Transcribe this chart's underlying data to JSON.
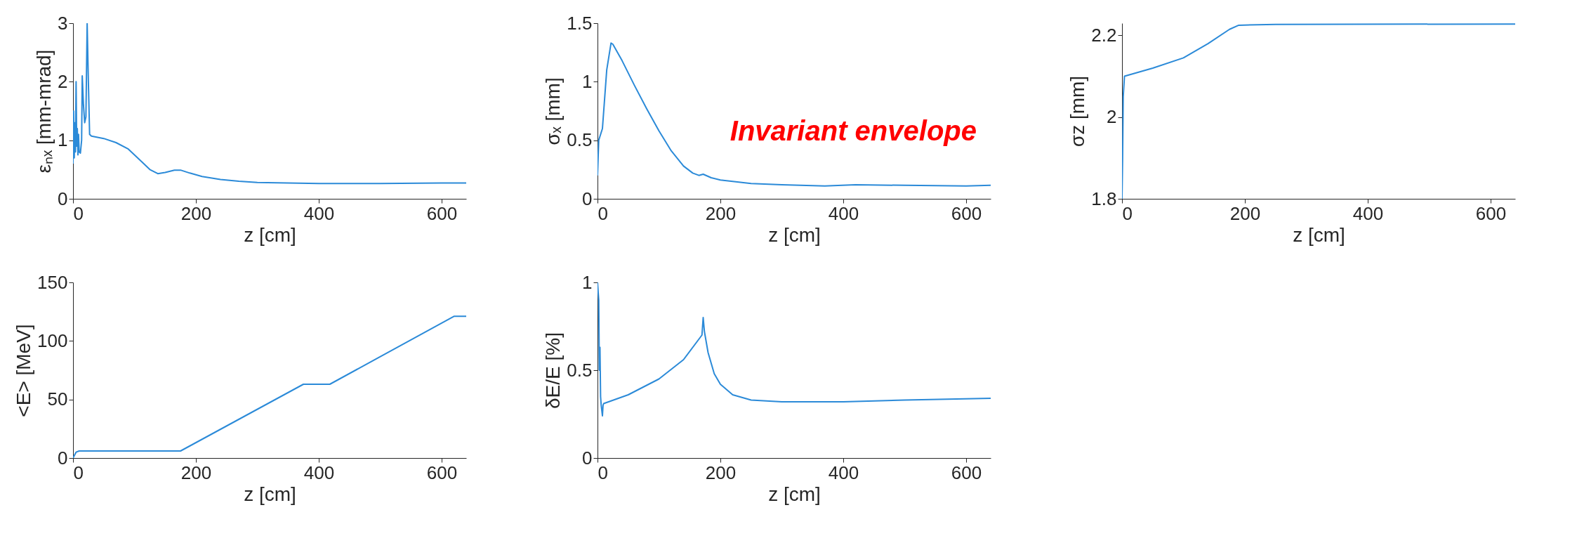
{
  "chart_data": [
    {
      "type": "line",
      "xlabel": "z [cm]",
      "ylabel": "εₙₓ [mm-mrad]",
      "xlim": [
        0,
        640
      ],
      "xticks": [
        0,
        200,
        400,
        600
      ],
      "ylim": [
        0,
        3
      ],
      "yticks": [
        0,
        1,
        2,
        3
      ],
      "grid": false,
      "x": [
        0,
        1,
        2,
        3,
        4,
        5,
        6,
        7,
        8,
        9,
        10,
        12,
        14,
        15,
        17,
        19,
        21,
        23,
        25,
        27,
        30,
        50,
        70,
        90,
        110,
        125,
        138,
        150,
        165,
        175,
        190,
        210,
        240,
        270,
        300,
        350,
        400,
        500,
        600,
        640
      ],
      "series": [
        {
          "color": "#2b8ad8",
          "values": [
            0.6,
            1.5,
            0.7,
            1.3,
            0.8,
            2.0,
            0.9,
            1.2,
            0.75,
            1.1,
            0.8,
            0.78,
            1.0,
            2.1,
            1.6,
            1.3,
            1.4,
            3.0,
            2.0,
            1.1,
            1.07,
            1.03,
            0.96,
            0.85,
            0.65,
            0.5,
            0.43,
            0.45,
            0.49,
            0.49,
            0.44,
            0.38,
            0.33,
            0.3,
            0.28,
            0.27,
            0.26,
            0.26,
            0.27,
            0.27
          ]
        }
      ]
    },
    {
      "type": "line",
      "xlabel": "z [cm]",
      "ylabel": "σₓ [mm]",
      "xlim": [
        0,
        640
      ],
      "xticks": [
        0,
        200,
        400,
        600
      ],
      "ylim": [
        0,
        1.5
      ],
      "yticks": [
        0,
        0.5,
        1,
        1.5
      ],
      "grid": false,
      "annotations": [
        "Invariant envelope"
      ],
      "x": [
        0,
        2,
        8,
        15,
        22,
        25,
        40,
        60,
        80,
        100,
        120,
        140,
        155,
        165,
        172,
        185,
        200,
        250,
        300,
        370,
        420,
        500,
        600,
        640
      ],
      "series": [
        {
          "color": "#2b8ad8",
          "values": [
            0.2,
            0.5,
            0.6,
            1.1,
            1.33,
            1.32,
            1.18,
            0.97,
            0.77,
            0.58,
            0.41,
            0.28,
            0.22,
            0.2,
            0.21,
            0.18,
            0.16,
            0.13,
            0.12,
            0.11,
            0.12,
            0.115,
            0.11,
            0.115
          ]
        }
      ]
    },
    {
      "type": "line",
      "xlabel": "z [cm]",
      "ylabel": "σz [mm]",
      "xlim": [
        0,
        640
      ],
      "xticks": [
        0,
        200,
        400,
        600
      ],
      "ylim": [
        1.8,
        2.23
      ],
      "yticks": [
        1.8,
        2,
        2.2
      ],
      "grid": false,
      "x": [
        0,
        1,
        2,
        4,
        50,
        100,
        140,
        175,
        190,
        250,
        640
      ],
      "series": [
        {
          "color": "#2b8ad8",
          "values": [
            1.8,
            1.9,
            2.05,
            2.1,
            2.12,
            2.145,
            2.18,
            2.215,
            2.225,
            2.227,
            2.228
          ]
        }
      ]
    },
    {
      "type": "line",
      "xlabel": "z [cm]",
      "ylabel": "<E> [MeV]",
      "xlim": [
        0,
        640
      ],
      "xticks": [
        0,
        200,
        400,
        600
      ],
      "ylim": [
        0,
        150
      ],
      "yticks": [
        0,
        50,
        100,
        150
      ],
      "grid": false,
      "x": [
        0,
        5,
        10,
        175,
        375,
        418,
        620,
        640
      ],
      "series": [
        {
          "color": "#2b8ad8",
          "values": [
            0,
            5,
            6,
            6,
            63,
            63,
            121,
            121
          ]
        }
      ]
    },
    {
      "type": "line",
      "xlabel": "z [cm]",
      "ylabel": "δE/E [%]",
      "xlim": [
        0,
        640
      ],
      "xticks": [
        0,
        200,
        400,
        600
      ],
      "ylim": [
        0,
        1
      ],
      "yticks": [
        0,
        0.5,
        1
      ],
      "grid": false,
      "x": [
        0,
        2,
        3,
        4,
        5,
        6,
        7,
        8,
        9,
        10,
        50,
        100,
        140,
        170,
        172,
        174,
        180,
        190,
        200,
        220,
        250,
        300,
        400,
        500,
        640
      ],
      "series": [
        {
          "color": "#2b8ad8",
          "values": [
            1.0,
            0.9,
            0.5,
            0.63,
            0.35,
            0.3,
            0.27,
            0.24,
            0.3,
            0.31,
            0.36,
            0.45,
            0.56,
            0.7,
            0.8,
            0.72,
            0.6,
            0.48,
            0.42,
            0.36,
            0.33,
            0.32,
            0.32,
            0.33,
            0.34
          ]
        }
      ]
    }
  ]
}
